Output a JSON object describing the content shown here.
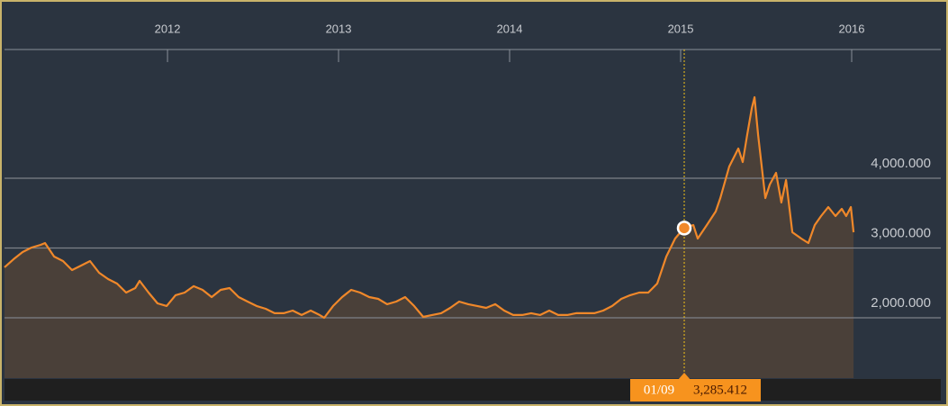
{
  "chart_data": {
    "type": "area",
    "x": [
      2011.047,
      2011.1,
      2011.153,
      2011.205,
      2011.258,
      2011.284,
      2011.337,
      2011.389,
      2011.442,
      2011.495,
      2011.547,
      2011.6,
      2011.653,
      2011.705,
      2011.758,
      2011.811,
      2011.837,
      2011.889,
      2011.942,
      2011.995,
      2012.047,
      2012.1,
      2012.153,
      2012.205,
      2012.258,
      2012.311,
      2012.363,
      2012.416,
      2012.468,
      2012.521,
      2012.574,
      2012.626,
      2012.679,
      2012.732,
      2012.784,
      2012.837,
      2012.889,
      2012.916,
      2012.968,
      2013.021,
      2013.074,
      2013.126,
      2013.179,
      2013.232,
      2013.284,
      2013.337,
      2013.389,
      2013.442,
      2013.495,
      2013.547,
      2013.6,
      2013.653,
      2013.705,
      2013.758,
      2013.811,
      2013.863,
      2013.916,
      2013.968,
      2014.021,
      2014.074,
      2014.126,
      2014.179,
      2014.232,
      2014.284,
      2014.337,
      2014.389,
      2014.442,
      2014.495,
      2014.547,
      2014.6,
      2014.653,
      2014.705,
      2014.758,
      2014.811,
      2014.863,
      2014.916,
      2014.968,
      2015.021,
      2015.074,
      2015.1,
      2015.153,
      2015.205,
      2015.232,
      2015.284,
      2015.337,
      2015.363,
      2015.389,
      2015.416,
      2015.432,
      2015.453,
      2015.495,
      2015.521,
      2015.558,
      2015.589,
      2015.616,
      2015.653,
      2015.705,
      2015.747,
      2015.784,
      2015.821,
      2015.863,
      2015.905,
      2015.942,
      2015.968,
      2015.995,
      2016.011
    ],
    "series": [
      {
        "color": "#f0882a",
        "values": [
          2723,
          2839,
          2942,
          3006,
          3045,
          3071,
          2877,
          2813,
          2684,
          2748,
          2813,
          2645,
          2555,
          2490,
          2361,
          2426,
          2529,
          2361,
          2206,
          2168,
          2323,
          2361,
          2452,
          2400,
          2297,
          2400,
          2426,
          2297,
          2232,
          2168,
          2129,
          2065,
          2065,
          2103,
          2039,
          2103,
          2039,
          2000,
          2168,
          2297,
          2400,
          2361,
          2297,
          2271,
          2194,
          2232,
          2297,
          2168,
          2013,
          2039,
          2065,
          2142,
          2232,
          2194,
          2168,
          2142,
          2194,
          2103,
          2039,
          2039,
          2065,
          2039,
          2103,
          2039,
          2039,
          2065,
          2065,
          2065,
          2103,
          2168,
          2271,
          2323,
          2361,
          2361,
          2490,
          2877,
          3135,
          3290,
          3329,
          3135,
          3329,
          3523,
          3716,
          4168,
          4426,
          4232,
          4619,
          5006,
          5161,
          4619,
          3716,
          3910,
          4077,
          3652,
          3974,
          3226,
          3135,
          3071,
          3329,
          3458,
          3587,
          3458,
          3561,
          3458,
          3587,
          3226
        ]
      }
    ],
    "xlim": [
      2011.047,
      2016.521
    ],
    "xticks": [
      2012,
      2013,
      2014,
      2015,
      2016
    ],
    "ylim": [
      1135,
      5845
    ],
    "yticks": [
      {
        "value": 2000,
        "label": "2,000.000"
      },
      {
        "value": 3000,
        "label": "3,000.000"
      },
      {
        "value": 4000,
        "label": "4,000.000"
      }
    ],
    "grid": true,
    "tooltip": {
      "x": 2015.021,
      "date_label": "01/09",
      "value": 3285.412,
      "value_label": "3,285.412"
    }
  }
}
